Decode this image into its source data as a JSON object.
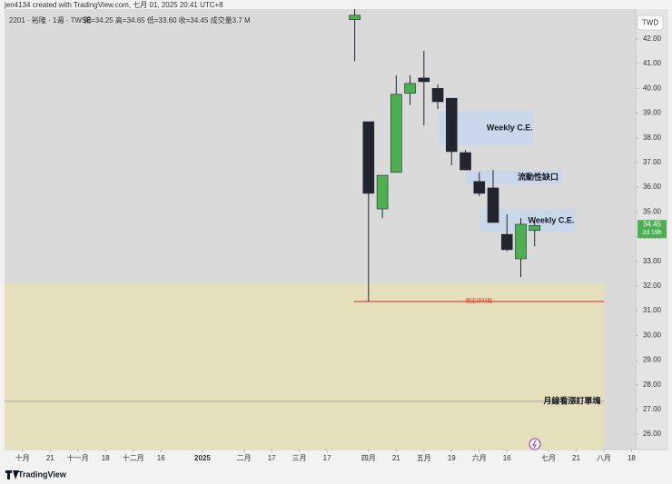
{
  "chart_data": {
    "type": "candlestick",
    "credit": "jen4134 created with TradingView.com, 七月 01, 2025 20:41 UTC+8",
    "title": "2201 · 裕隆 · 1週 · TWSE",
    "subtitle": "開=34.25 高=34.65 低=33.60 收=34.45 成交量3.7 M",
    "currency": "TWD",
    "countdown": "2d 19h",
    "brand": "TradingView",
    "up_color": "#4caf50",
    "down_color": "#22252e",
    "x": [
      24,
      25,
      26,
      27,
      28,
      29,
      30,
      31,
      32,
      33,
      34,
      35,
      36,
      37
    ],
    "open": [
      42.78,
      38.65,
      35.12,
      36.6,
      39.8,
      40.42,
      40.0,
      39.6,
      37.4,
      36.23,
      35.97,
      34.09,
      33.1,
      34.25
    ],
    "high": [
      43.5,
      38.65,
      36.48,
      40.53,
      40.53,
      41.52,
      40.16,
      39.6,
      37.5,
      36.6,
      36.7,
      34.9,
      34.75,
      34.65
    ],
    "low": [
      41.1,
      31.37,
      34.75,
      36.6,
      39.32,
      38.5,
      39.17,
      36.89,
      36.7,
      35.64,
      34.57,
      33.4,
      32.36,
      33.6
    ],
    "close": [
      42.96,
      35.75,
      36.48,
      39.76,
      40.2,
      40.27,
      39.46,
      37.44,
      36.7,
      35.75,
      34.57,
      33.47,
      34.5,
      34.45
    ],
    "xlim": [
      -1.3,
      44.3
    ],
    "xticks": [
      {
        "value": 0,
        "label": "十月"
      },
      {
        "value": 2,
        "label": "21"
      },
      {
        "value": 4,
        "label": "十一月"
      },
      {
        "value": 6,
        "label": "18"
      },
      {
        "value": 8,
        "label": "十二月"
      },
      {
        "value": 10,
        "label": "16"
      },
      {
        "value": 13,
        "label": "2025"
      },
      {
        "value": 16,
        "label": "二月"
      },
      {
        "value": 18,
        "label": "17"
      },
      {
        "value": 20,
        "label": "三月"
      },
      {
        "value": 22,
        "label": "17"
      },
      {
        "value": 25,
        "label": "四月"
      },
      {
        "value": 27,
        "label": "21"
      },
      {
        "value": 29,
        "label": "五月"
      },
      {
        "value": 31,
        "label": "19"
      },
      {
        "value": 33,
        "label": "六月"
      },
      {
        "value": 35,
        "label": "16"
      },
      {
        "value": 38,
        "label": "七月"
      },
      {
        "value": 40,
        "label": "21"
      },
      {
        "value": 42,
        "label": "八月"
      },
      {
        "value": 44,
        "label": "18"
      }
    ],
    "ylim": [
      25.38,
      43.21
    ],
    "yticks": [
      {
        "value": 42,
        "label": "42.00"
      },
      {
        "value": 41,
        "label": "41.00"
      },
      {
        "value": 40,
        "label": "40.00"
      },
      {
        "value": 39,
        "label": "39.00"
      },
      {
        "value": 38,
        "label": "38.00"
      },
      {
        "value": 37,
        "label": "37.00"
      },
      {
        "value": 36,
        "label": "36.00"
      },
      {
        "value": 35,
        "label": "35.00"
      },
      {
        "value": 34,
        "label": "34.00"
      },
      {
        "value": 33,
        "label": "33.00"
      },
      {
        "value": 32,
        "label": "32.00"
      },
      {
        "value": 31,
        "label": "31.00"
      },
      {
        "value": 30,
        "label": "30.00"
      },
      {
        "value": 29,
        "label": "29.00"
      },
      {
        "value": 28,
        "label": "28.00"
      },
      {
        "value": 27,
        "label": "27.00"
      },
      {
        "value": 26,
        "label": "26.00"
      }
    ],
    "zones": [
      {
        "text": "月線看漲訂單塊",
        "x": [
          -1.3,
          42.03
        ],
        "y": [
          25.38,
          32.11
        ],
        "color": "#e6e1b6"
      },
      {
        "text": "Weekly C.E.",
        "x": [
          30.1,
          36.9
        ],
        "y": [
          37.7,
          39.09
        ],
        "color": "#c5d6ee"
      },
      {
        "text": "流動性缺口",
        "x": [
          32.0,
          39.0
        ],
        "y": [
          36.12,
          36.67
        ],
        "color": "#c5d6ee"
      },
      {
        "text": "Weekly C.E.",
        "x": [
          33.0,
          39.93
        ],
        "y": [
          34.17,
          35.12
        ],
        "color": "#c5d6ee"
      }
    ],
    "lines": [
      {
        "text": "預定停利點",
        "x": [
          23.93,
          42.03
        ],
        "y": 31.37,
        "color": "#e53935"
      },
      {
        "text": "月線看漲訂單塊",
        "x": [
          -1.3,
          42.03
        ],
        "y": 27.33,
        "color": "#9e9e9e"
      }
    ]
  }
}
